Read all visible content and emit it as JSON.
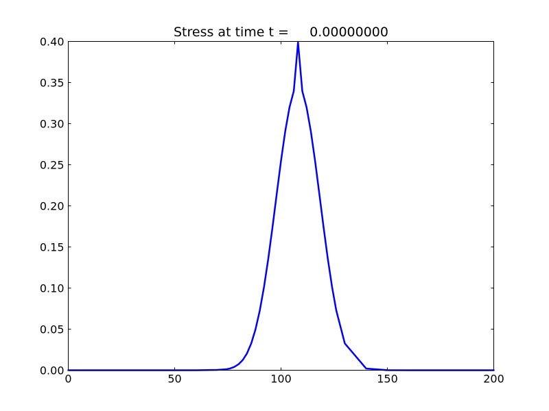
{
  "chart_data": {
    "type": "line",
    "title": "Stress at time t =     0.00000000",
    "xlabel": "",
    "ylabel": "",
    "xlim": [
      0,
      200
    ],
    "ylim": [
      0,
      0.4
    ],
    "xticks": [
      0,
      50,
      100,
      150,
      200
    ],
    "yticks": [
      0.0,
      0.05,
      0.1,
      0.15,
      0.2,
      0.25,
      0.3,
      0.35,
      0.4
    ],
    "xtick_labels": [
      "0",
      "50",
      "100",
      "150",
      "200"
    ],
    "ytick_labels": [
      "0.00",
      "0.05",
      "0.10",
      "0.15",
      "0.20",
      "0.25",
      "0.30",
      "0.35",
      "0.40"
    ],
    "grid": false,
    "series": [
      {
        "color": "#0000ff",
        "x": [
          0,
          10,
          20,
          30,
          40,
          50,
          60,
          70,
          74,
          76,
          78,
          80,
          82,
          84,
          86,
          88,
          90,
          92,
          94,
          96,
          98,
          100,
          102,
          104,
          106,
          108,
          110,
          112,
          114,
          116,
          118,
          120,
          122,
          124,
          126,
          130,
          140,
          150,
          160,
          170,
          180,
          190,
          200
        ],
        "y": [
          0,
          0,
          0,
          0,
          0,
          0,
          0,
          0.0004,
          0.0011,
          0.0021,
          0.004,
          0.0072,
          0.0124,
          0.0205,
          0.0326,
          0.0497,
          0.0724,
          0.1012,
          0.1355,
          0.1741,
          0.2148,
          0.2549,
          0.291,
          0.32,
          0.3396,
          0.3989,
          0.3396,
          0.32,
          0.291,
          0.2549,
          0.2148,
          0.1741,
          0.1355,
          0.1012,
          0.0724,
          0.0326,
          0.0021,
          0.0001,
          0,
          0,
          0,
          0,
          0
        ]
      }
    ]
  }
}
